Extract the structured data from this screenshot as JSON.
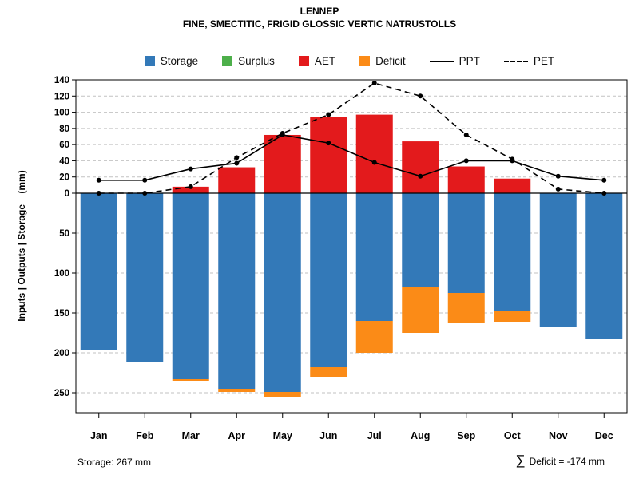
{
  "header": {
    "title": "LENNEP",
    "subtitle": "FINE, SMECTITIC, FRIGID GLOSSIC VERTIC NATRUSTOLLS"
  },
  "legend": {
    "items": [
      {
        "label": "Storage",
        "color": "#3379b8",
        "marker": "box"
      },
      {
        "label": "Surplus",
        "color": "#4daf4a",
        "marker": "box"
      },
      {
        "label": "AET",
        "color": "#e31a1c",
        "marker": "box"
      },
      {
        "label": "Deficit",
        "color": "#fb8b17",
        "marker": "box"
      },
      {
        "label": "PPT",
        "color": "#000000",
        "marker": "solid-line"
      },
      {
        "label": "PET",
        "color": "#000000",
        "marker": "dashed-line"
      }
    ]
  },
  "axis": {
    "ylabel": "Inputs | Outputs | Storage    (mm)"
  },
  "footer": {
    "storage_note": "Storage: 267 mm",
    "sigma": "∑",
    "deficit_note": "Deficit = -174 mm"
  },
  "chart_data": {
    "type": "bar",
    "title": "LENNEP",
    "subtitle": "FINE, SMECTITIC, FRIGID GLOSSIC VERTIC NATRUSTOLLS",
    "ylabel": "Inputs | Outputs | Storage (mm)",
    "categories": [
      "Jan",
      "Feb",
      "Mar",
      "Apr",
      "May",
      "Jun",
      "Jul",
      "Aug",
      "Sep",
      "Oct",
      "Nov",
      "Dec"
    ],
    "series": [
      {
        "name": "Storage",
        "direction": "down",
        "color": "#3379b8",
        "values": [
          197,
          212,
          233,
          245,
          249,
          218,
          160,
          117,
          125,
          147,
          167,
          183
        ]
      },
      {
        "name": "Surplus",
        "direction": "up",
        "color": "#4daf4a",
        "values": [
          0,
          0,
          0,
          0,
          0,
          0,
          0,
          0,
          0,
          0,
          0,
          0
        ]
      },
      {
        "name": "AET",
        "direction": "up",
        "color": "#e31a1c",
        "values": [
          0,
          0,
          8,
          32,
          72,
          94,
          97,
          64,
          33,
          18,
          0,
          0
        ]
      },
      {
        "name": "Deficit",
        "direction": "down",
        "stack_on": "Storage",
        "color": "#fb8b17",
        "values": [
          0,
          0,
          2,
          4,
          6,
          12,
          40,
          58,
          38,
          14,
          0,
          0
        ]
      }
    ],
    "lines": [
      {
        "name": "PPT",
        "style": "solid",
        "marker": "circle",
        "color": "#000000",
        "values": [
          16,
          16,
          30,
          37,
          72,
          62,
          38,
          21,
          40,
          40,
          21,
          16
        ]
      },
      {
        "name": "PET",
        "style": "dashed",
        "marker": "circle",
        "color": "#000000",
        "values": [
          0,
          0,
          8,
          44,
          74,
          97,
          136,
          120,
          72,
          42,
          5,
          0
        ]
      }
    ],
    "y_axis_upper": {
      "min": 0,
      "max": 140,
      "ticks": [
        0,
        20,
        40,
        60,
        80,
        100,
        120,
        140
      ]
    },
    "y_axis_lower": {
      "min": 0,
      "max": 250,
      "ticks": [
        50,
        100,
        150,
        200,
        250
      ],
      "inverted": true
    },
    "grid": true,
    "legend_position": "top",
    "annotations": {
      "storage_total_mm": 267,
      "deficit_sum_mm": -174
    }
  }
}
